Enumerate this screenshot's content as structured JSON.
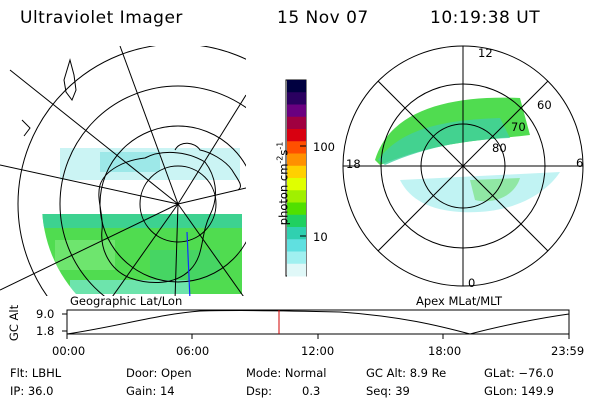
{
  "header": {
    "instrument": "Ultraviolet Imager",
    "date": "15 Nov 07",
    "time": "10:19:38 UT"
  },
  "left_panel": {
    "label": "Geographic Lat/Lon"
  },
  "right_panel": {
    "label": "Apex MLat/MLT",
    "mlt_labels": [
      "12",
      "18",
      "6",
      "0"
    ],
    "mlat_labels": [
      "60",
      "70",
      "80"
    ]
  },
  "colorbar": {
    "title": "photon cm",
    "title_sup_1": "-2",
    "title_mid": "s",
    "title_sup_2": "-1",
    "ticks": [
      "100",
      "10"
    ],
    "colors": [
      "#000040",
      "#2a0060",
      "#6a0080",
      "#a00040",
      "#d80010",
      "#ff5000",
      "#ff9000",
      "#ffd000",
      "#e0ff00",
      "#a0f000",
      "#50e000",
      "#20d060",
      "#30d0b0",
      "#60e0e0",
      "#a0f0f0",
      "#e0f8f8"
    ]
  },
  "altitude_plot": {
    "ylabel": "GC Alt",
    "y_ticks": [
      "9.0",
      "1.8"
    ],
    "x_ticks": [
      "00:00",
      "06:00",
      "12:00",
      "18:00",
      "23:59"
    ],
    "marker_color": "#d00000"
  },
  "footer": {
    "flt": "Flt: LBHL",
    "ip": "IP: 36.0",
    "door": "Door: Open",
    "gain": "Gain: 14",
    "mode": "Mode: Normal",
    "dsp_label": "Dsp:",
    "dsp_value": "0.3",
    "gc_alt": "GC Alt: 8.9 Re",
    "seq": "Seq: 39",
    "glat": "GLat: −76.0",
    "glon": "GLon: 149.9"
  }
}
